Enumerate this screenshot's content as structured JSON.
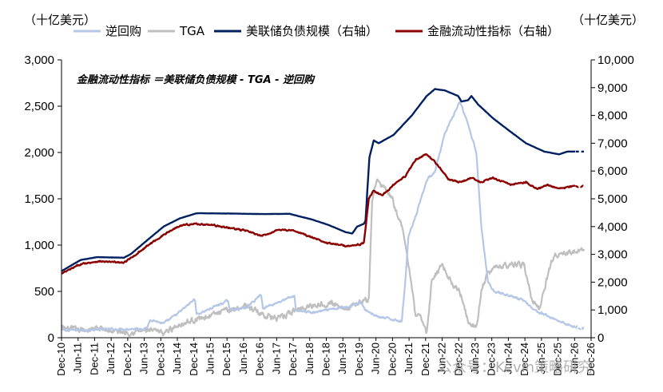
{
  "chart_data": {
    "type": "line",
    "title": "",
    "annotation": "金融流动性指标 ＝美联储负债规模 - TGA - 逆回购",
    "left_unit": "（十亿美元）",
    "right_unit": "（十亿美元）",
    "y_left": {
      "min": 0,
      "max": 3000,
      "ticks": [
        "0",
        "500",
        "1,000",
        "1,500",
        "2,000",
        "2,500",
        "3,000"
      ]
    },
    "y_right": {
      "min": 0,
      "max": 10000,
      "ticks": [
        "0",
        "1,000",
        "2,000",
        "3,000",
        "4,000",
        "5,000",
        "6,000",
        "7,000",
        "8,000",
        "9,000",
        "10,000"
      ]
    },
    "x_ticks": [
      "Dec-10",
      "Jun-11",
      "Dec-11",
      "Jun-12",
      "Dec-12",
      "Jun-13",
      "Dec-13",
      "Jun-14",
      "Dec-14",
      "Jun-15",
      "Dec-15",
      "Jun-16",
      "Dec-16",
      "Jun-17",
      "Dec-17",
      "Jun-18",
      "Dec-18",
      "Jun-19",
      "Dec-19",
      "Jun-20",
      "Dec-20",
      "Jun-21",
      "Dec-21",
      "Jun-22",
      "Dec-22",
      "Jun-23",
      "Dec-23",
      "Jun-24",
      "Dec-24",
      "Jun-25",
      "Dec-25",
      "Jun-26",
      "Dec-26"
    ],
    "x_range": [
      2010.917,
      2026.917
    ],
    "series": [
      {
        "name": "逆回购",
        "axis": "left",
        "color": "#b4c7e7",
        "width": 2.2,
        "noise": 22,
        "last_dashed": true,
        "points": [
          [
            2010.92,
            80
          ],
          [
            2013.5,
            100
          ],
          [
            2013.6,
            200
          ],
          [
            2014.0,
            150
          ],
          [
            2014.5,
            280
          ],
          [
            2014.95,
            420
          ],
          [
            2015.0,
            250
          ],
          [
            2015.95,
            400
          ],
          [
            2016.0,
            300
          ],
          [
            2016.5,
            320
          ],
          [
            2016.95,
            470
          ],
          [
            2017.0,
            320
          ],
          [
            2017.95,
            450
          ],
          [
            2018.0,
            300
          ],
          [
            2018.5,
            270
          ],
          [
            2019.0,
            300
          ],
          [
            2019.5,
            330
          ],
          [
            2019.95,
            380
          ],
          [
            2020.1,
            300
          ],
          [
            2020.5,
            220
          ],
          [
            2020.9,
            200
          ],
          [
            2021.2,
            180
          ],
          [
            2021.3,
            600
          ],
          [
            2021.4,
            1100
          ],
          [
            2021.6,
            1300
          ],
          [
            2021.95,
            1700
          ],
          [
            2022.2,
            1800
          ],
          [
            2022.5,
            2200
          ],
          [
            2022.95,
            2550
          ],
          [
            2023.2,
            2300
          ],
          [
            2023.45,
            2000
          ],
          [
            2023.6,
            1200
          ],
          [
            2023.8,
            600
          ],
          [
            2024.0,
            500
          ],
          [
            2024.5,
            450
          ],
          [
            2024.9,
            400
          ],
          [
            2025.2,
            300
          ],
          [
            2025.5,
            250
          ],
          [
            2025.95,
            180
          ],
          [
            2026.4,
            120
          ],
          [
            2026.7,
            100
          ]
        ]
      },
      {
        "name": "TGA",
        "axis": "left",
        "color": "#bfbfbf",
        "width": 2.2,
        "noise": 55,
        "last_dashed": true,
        "points": [
          [
            2010.92,
            100
          ],
          [
            2011.5,
            80
          ],
          [
            2012.0,
            100
          ],
          [
            2012.5,
            70
          ],
          [
            2013.0,
            60
          ],
          [
            2013.5,
            80
          ],
          [
            2014.0,
            50
          ],
          [
            2014.5,
            150
          ],
          [
            2015.0,
            200
          ],
          [
            2015.5,
            250
          ],
          [
            2016.0,
            300
          ],
          [
            2016.5,
            350
          ],
          [
            2017.0,
            250
          ],
          [
            2017.5,
            200
          ],
          [
            2018.0,
            300
          ],
          [
            2018.5,
            350
          ],
          [
            2019.0,
            380
          ],
          [
            2019.5,
            320
          ],
          [
            2019.9,
            380
          ],
          [
            2020.2,
            400
          ],
          [
            2020.3,
            1500
          ],
          [
            2020.45,
            1700
          ],
          [
            2020.7,
            1600
          ],
          [
            2020.9,
            1500
          ],
          [
            2021.2,
            1200
          ],
          [
            2021.45,
            700
          ],
          [
            2021.6,
            250
          ],
          [
            2021.8,
            200
          ],
          [
            2021.95,
            50
          ],
          [
            2022.1,
            600
          ],
          [
            2022.4,
            800
          ],
          [
            2022.7,
            600
          ],
          [
            2022.95,
            500
          ],
          [
            2023.2,
            200
          ],
          [
            2023.45,
            100
          ],
          [
            2023.6,
            500
          ],
          [
            2023.8,
            700
          ],
          [
            2024.0,
            750
          ],
          [
            2024.5,
            800
          ],
          [
            2024.9,
            780
          ],
          [
            2025.1,
            450
          ],
          [
            2025.35,
            300
          ],
          [
            2025.55,
            600
          ],
          [
            2025.8,
            900
          ],
          [
            2026.1,
            900
          ],
          [
            2026.4,
            930
          ],
          [
            2026.7,
            950
          ]
        ]
      },
      {
        "name": "美联储负债规模（右轴）",
        "axis": "right",
        "color": "#002060",
        "width": 2.4,
        "noise": 4,
        "last_dashed": true,
        "points": [
          [
            2010.92,
            2400
          ],
          [
            2011.5,
            2800
          ],
          [
            2012.0,
            2900
          ],
          [
            2012.8,
            2880
          ],
          [
            2013.0,
            3000
          ],
          [
            2013.5,
            3500
          ],
          [
            2014.0,
            4000
          ],
          [
            2014.5,
            4300
          ],
          [
            2015.0,
            4480
          ],
          [
            2016.0,
            4470
          ],
          [
            2017.0,
            4450
          ],
          [
            2017.8,
            4460
          ],
          [
            2018.0,
            4400
          ],
          [
            2018.5,
            4250
          ],
          [
            2019.0,
            4050
          ],
          [
            2019.5,
            3800
          ],
          [
            2019.7,
            3750
          ],
          [
            2019.85,
            4000
          ],
          [
            2020.05,
            4100
          ],
          [
            2020.1,
            4200
          ],
          [
            2020.22,
            6500
          ],
          [
            2020.35,
            7100
          ],
          [
            2020.5,
            7000
          ],
          [
            2020.95,
            7300
          ],
          [
            2021.5,
            8000
          ],
          [
            2021.95,
            8700
          ],
          [
            2022.2,
            8950
          ],
          [
            2022.5,
            8900
          ],
          [
            2022.9,
            8700
          ],
          [
            2023.0,
            8500
          ],
          [
            2023.2,
            8550
          ],
          [
            2023.3,
            8700
          ],
          [
            2023.5,
            8400
          ],
          [
            2023.95,
            7900
          ],
          [
            2024.5,
            7400
          ],
          [
            2024.95,
            7000
          ],
          [
            2025.5,
            6700
          ],
          [
            2025.95,
            6600
          ],
          [
            2026.2,
            6700
          ],
          [
            2026.7,
            6700
          ]
        ]
      },
      {
        "name": "金融流动性指标（右轴）",
        "axis": "right",
        "color": "#8b0000",
        "width": 2.4,
        "noise": 48,
        "last_dashed": true,
        "points": [
          [
            2010.92,
            2300
          ],
          [
            2011.5,
            2650
          ],
          [
            2012.0,
            2750
          ],
          [
            2012.8,
            2700
          ],
          [
            2013.0,
            2850
          ],
          [
            2013.5,
            3300
          ],
          [
            2014.0,
            3700
          ],
          [
            2014.5,
            4050
          ],
          [
            2015.0,
            4100
          ],
          [
            2015.5,
            4050
          ],
          [
            2016.0,
            3950
          ],
          [
            2016.5,
            3850
          ],
          [
            2016.95,
            3650
          ],
          [
            2017.5,
            3900
          ],
          [
            2017.95,
            3850
          ],
          [
            2018.5,
            3600
          ],
          [
            2019.0,
            3400
          ],
          [
            2019.5,
            3300
          ],
          [
            2019.9,
            3350
          ],
          [
            2020.05,
            3400
          ],
          [
            2020.2,
            5000
          ],
          [
            2020.35,
            5300
          ],
          [
            2020.6,
            5100
          ],
          [
            2020.95,
            5500
          ],
          [
            2021.3,
            5800
          ],
          [
            2021.6,
            6400
          ],
          [
            2021.95,
            6600
          ],
          [
            2022.3,
            6200
          ],
          [
            2022.6,
            5700
          ],
          [
            2022.95,
            5600
          ],
          [
            2023.3,
            5750
          ],
          [
            2023.6,
            5600
          ],
          [
            2023.95,
            5750
          ],
          [
            2024.5,
            5500
          ],
          [
            2024.95,
            5600
          ],
          [
            2025.3,
            5350
          ],
          [
            2025.6,
            5500
          ],
          [
            2025.95,
            5350
          ],
          [
            2026.3,
            5450
          ],
          [
            2026.7,
            5450
          ]
        ]
      }
    ],
    "legend_position": "top",
    "grid": false
  },
  "watermark": "公众号：Kevin策略研究"
}
